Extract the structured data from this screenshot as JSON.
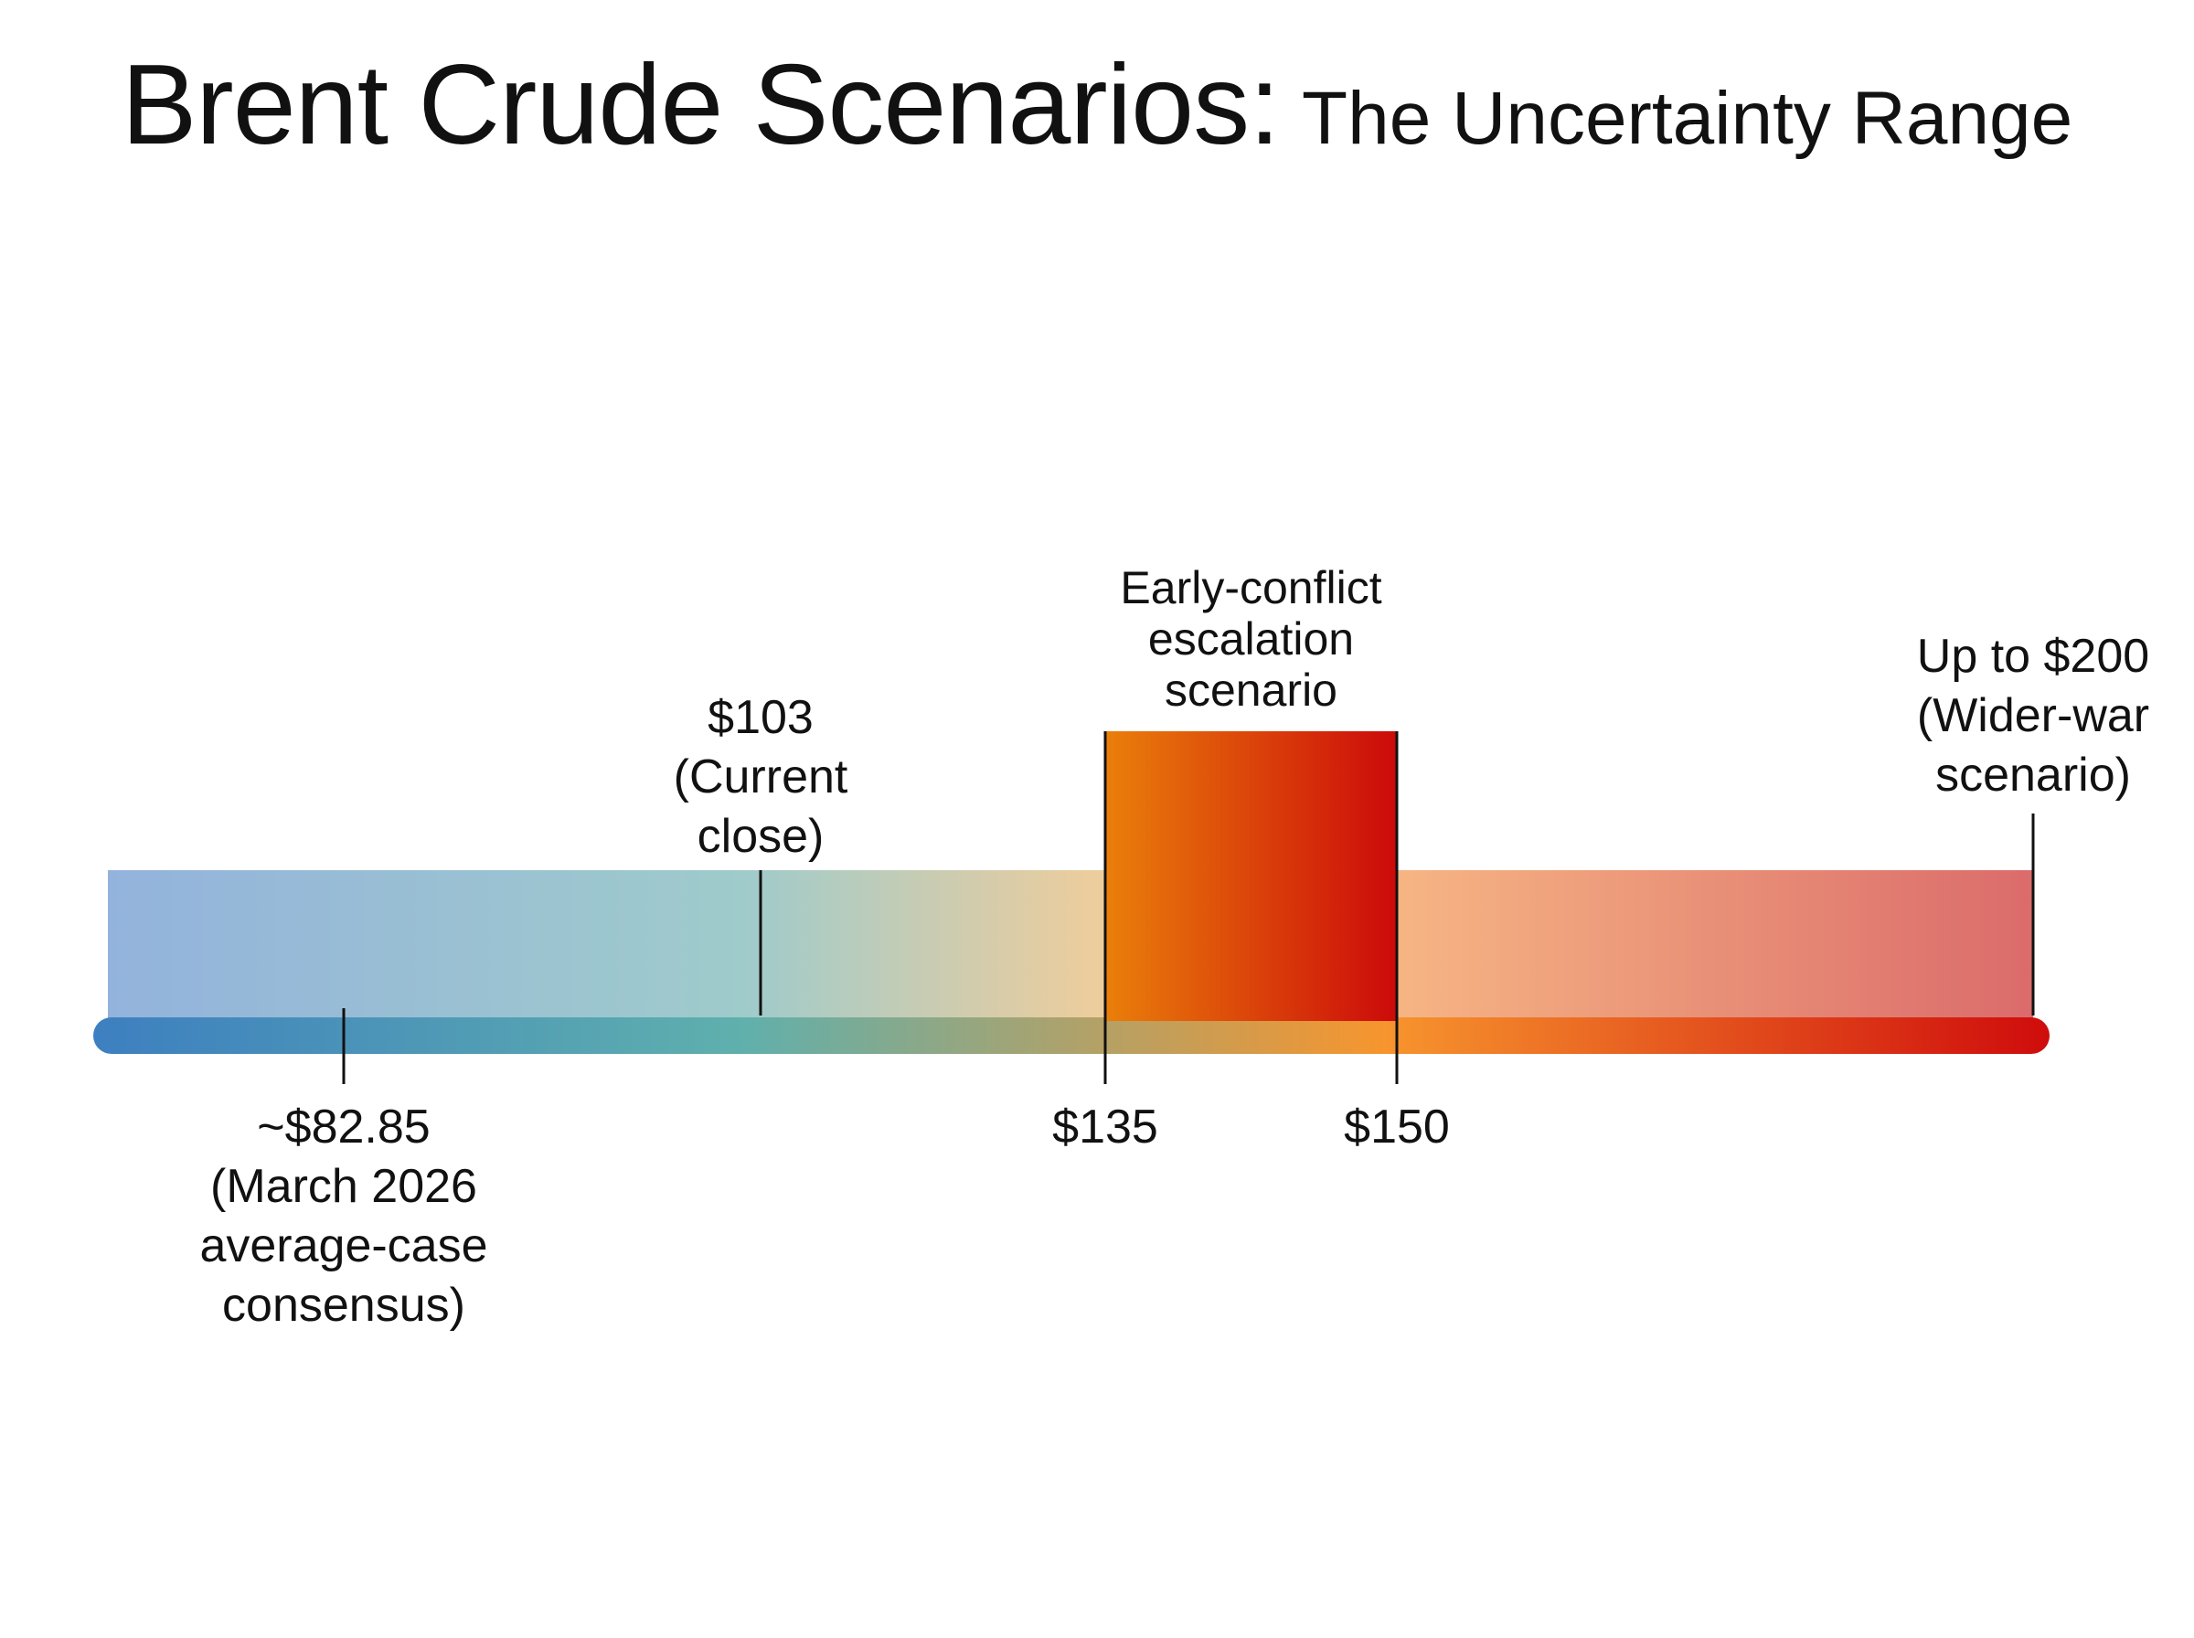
{
  "chart_data": {
    "type": "range",
    "title": "Brent Crude Scenarios:",
    "subtitle": "The Uncertainty Range",
    "colors": {
      "low": "#3d7fc0",
      "mid": "#5fb0ad",
      "high": "#f7952e",
      "peak": "#cf0c0c",
      "band_low": "#93b3dc",
      "band_high": "#db6b6b",
      "escalation_start": "#ea7f0a",
      "escalation_end": "#cc0a0a"
    },
    "markers": [
      {
        "value": 82.85,
        "lines": [
          "~$82.85",
          "(March 2026",
          "average-case",
          "consensus)"
        ],
        "side": "below"
      },
      {
        "value": 103,
        "lines": [
          "$103",
          "(Current",
          "close)"
        ],
        "side": "above"
      },
      {
        "value": 135,
        "lines": [
          "$135"
        ],
        "side": "below"
      },
      {
        "value": 150,
        "lines": [
          "$150"
        ],
        "side": "below"
      },
      {
        "value": 200,
        "lines": [
          "Up to $200",
          "(Wider-war",
          "scenario)"
        ],
        "side": "above"
      }
    ],
    "highlight_range": {
      "from": 135,
      "to": 150,
      "lines": [
        "Early-conflict",
        "escalation",
        "scenario"
      ]
    }
  }
}
